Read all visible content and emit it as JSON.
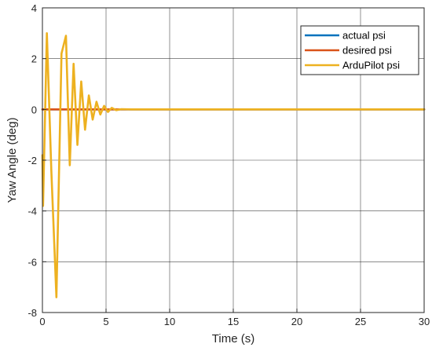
{
  "chart_data": {
    "type": "line",
    "title": "",
    "xlabel": "Time (s)",
    "ylabel": "Yaw Angle (deg)",
    "xlim": [
      0,
      30
    ],
    "ylim": [
      -8,
      4
    ],
    "xticks": [
      0,
      5,
      10,
      15,
      20,
      25,
      30
    ],
    "yticks": [
      -8,
      -6,
      -4,
      -2,
      0,
      2,
      4
    ],
    "grid": true,
    "legend_position": "top-right",
    "series": [
      {
        "name": "actual psi",
        "color": "#0072BD",
        "x": [
          0,
          30
        ],
        "y": [
          0,
          0
        ]
      },
      {
        "name": "desired psi",
        "color": "#D95319",
        "x": [
          0,
          1.0,
          1.01,
          30
        ],
        "y": [
          0,
          0,
          0,
          0
        ]
      },
      {
        "name": "ArduPilot psi",
        "color": "#EDB120",
        "x": [
          0,
          0.05,
          0.35,
          0.7,
          1.1,
          1.5,
          1.85,
          2.15,
          2.45,
          2.75,
          3.05,
          3.35,
          3.65,
          3.95,
          4.25,
          4.55,
          4.85,
          5.15,
          5.45,
          5.8,
          6.2,
          7.0,
          8.0,
          30
        ],
        "y": [
          -1.8,
          -3.8,
          3.0,
          -2.4,
          -7.4,
          2.2,
          2.9,
          -2.2,
          1.8,
          -1.4,
          1.1,
          -0.8,
          0.55,
          -0.4,
          0.3,
          -0.2,
          0.14,
          -0.1,
          0.06,
          -0.03,
          0.01,
          0,
          0,
          0
        ]
      }
    ]
  }
}
